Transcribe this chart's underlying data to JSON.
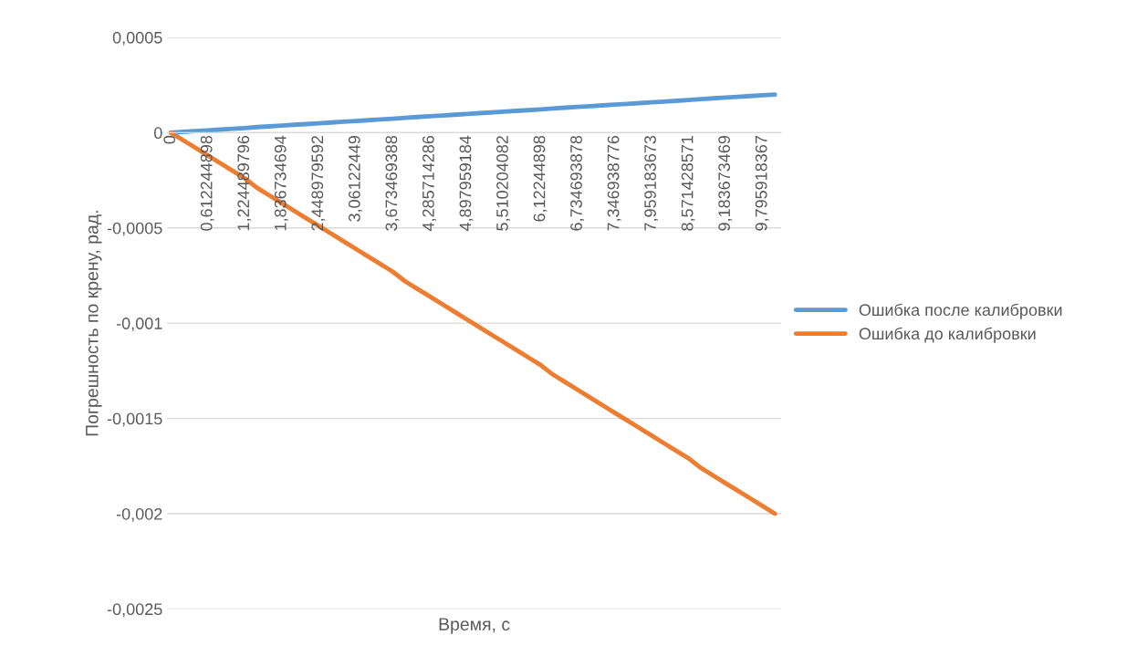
{
  "chart_data": {
    "type": "line",
    "xlabel": "Время, с",
    "ylabel": "Погрешность по крену, рад.",
    "categories": [
      "0",
      null,
      null,
      "0,612244898",
      null,
      null,
      "1,224489796",
      null,
      null,
      "1,836734694",
      null,
      null,
      "2,448979592",
      null,
      null,
      "3,06122449",
      null,
      null,
      "3,673469388",
      null,
      null,
      "4,285714286",
      null,
      null,
      "4,897959184",
      null,
      null,
      "5,510204082",
      null,
      null,
      "6,12244898",
      null,
      null,
      "6,734693878",
      null,
      null,
      "7,346938776",
      null,
      null,
      "7,959183673",
      null,
      null,
      "8,571428571",
      null,
      null,
      "9,183673469",
      null,
      null,
      "9,795918367",
      null
    ],
    "series": [
      {
        "name": "Ошибка после калибровки",
        "color": "#5b9bd5",
        "values": [
          0,
          4e-06,
          8e-06,
          1.2e-05,
          1.6e-05,
          2e-05,
          2.4e-05,
          2.9e-05,
          3.3e-05,
          3.7e-05,
          4.1e-05,
          4.5e-05,
          4.9e-05,
          5.3e-05,
          5.7e-05,
          6.1e-05,
          6.5e-05,
          6.9e-05,
          7.3e-05,
          7.8e-05,
          8.2e-05,
          8.6e-05,
          9e-05,
          9.4e-05,
          9.8e-05,
          0.000102,
          0.000106,
          0.00011,
          0.000114,
          0.000118,
          0.000122,
          0.000127,
          0.000131,
          0.000135,
          0.000139,
          0.000143,
          0.000147,
          0.000151,
          0.000155,
          0.000159,
          0.000163,
          0.000167,
          0.000171,
          0.000176,
          0.00018,
          0.000184,
          0.000188,
          0.000192,
          0.000196,
          0.0002
        ]
      },
      {
        "name": "Ошибка до калибровки",
        "color": "#ed7d31",
        "values": [
          0,
          -4e-05,
          -8e-05,
          -0.00012,
          -0.00016,
          -0.0002,
          -0.00024,
          -0.00029,
          -0.00033,
          -0.00037,
          -0.00041,
          -0.00045,
          -0.00049,
          -0.00053,
          -0.00057,
          -0.00061,
          -0.00065,
          -0.00069,
          -0.00073,
          -0.00078,
          -0.00082,
          -0.00086,
          -0.0009,
          -0.00094,
          -0.00098,
          -0.00102,
          -0.00106,
          -0.0011,
          -0.00114,
          -0.00118,
          -0.00122,
          -0.00127,
          -0.00131,
          -0.00135,
          -0.00139,
          -0.00143,
          -0.00147,
          -0.00151,
          -0.00155,
          -0.00159,
          -0.00163,
          -0.00167,
          -0.00171,
          -0.00176,
          -0.0018,
          -0.00184,
          -0.00188,
          -0.00192,
          -0.00196,
          -0.002
        ]
      }
    ],
    "ylim": [
      -0.0025,
      0.0005
    ],
    "yticks": [
      {
        "value": 0.0005,
        "label": "0,0005"
      },
      0,
      {
        "value": -0.0005,
        "label": "-0,0005"
      },
      {
        "value": -0.001,
        "label": "-0,001"
      },
      {
        "value": -0.0015,
        "label": "-0,0015"
      },
      {
        "value": -0.002,
        "label": "-0,002"
      },
      {
        "value": -0.0025,
        "label": "-0,0025"
      }
    ],
    "grid": "y",
    "legend": "right",
    "marker": "none",
    "line_style": "solid"
  }
}
